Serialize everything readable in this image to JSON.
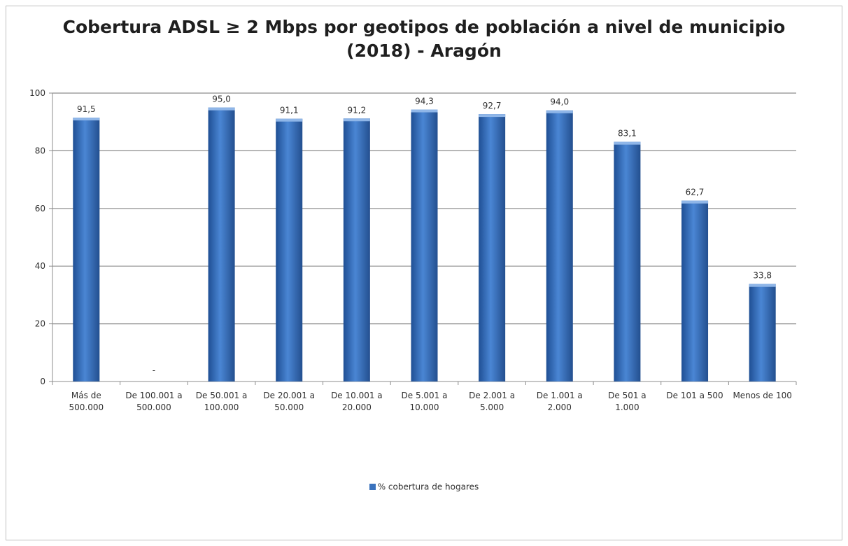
{
  "chart_data": {
    "type": "bar",
    "title_lines": [
      "Cobertura ADSL ≥ 2 Mbps por geotipos de población a nivel de municipio",
      "(2018)  - Aragón"
    ],
    "categories": [
      [
        "Más de",
        "500.000"
      ],
      [
        "De 100.001 a",
        "500.000"
      ],
      [
        "De 50.001 a",
        "100.000"
      ],
      [
        "De 20.001 a",
        "50.000"
      ],
      [
        "De 10.001 a",
        "20.000"
      ],
      [
        "De 5.001 a",
        "10.000"
      ],
      [
        "De 2.001 a",
        "5.000"
      ],
      [
        "De 1.001 a",
        "2.000"
      ],
      [
        "De 501 a",
        "1.000"
      ],
      [
        "De 101 a 500"
      ],
      [
        "Menos de 100"
      ]
    ],
    "series": [
      {
        "name": "% cobertura de hogares",
        "values": [
          91.5,
          null,
          95.0,
          91.1,
          91.2,
          94.3,
          92.7,
          94.0,
          83.1,
          62.7,
          33.8
        ],
        "labels": [
          "91,5",
          "-",
          "95,0",
          "91,1",
          "91,2",
          "94,3",
          "92,7",
          "94,0",
          "83,1",
          "62,7",
          "33,8"
        ]
      }
    ],
    "ylim": [
      0,
      100
    ],
    "yticks": [
      "0",
      "20",
      "40",
      "60",
      "80",
      "100"
    ],
    "grid": true,
    "legend_position": "bottom",
    "bar_color": "#3a72bd"
  }
}
